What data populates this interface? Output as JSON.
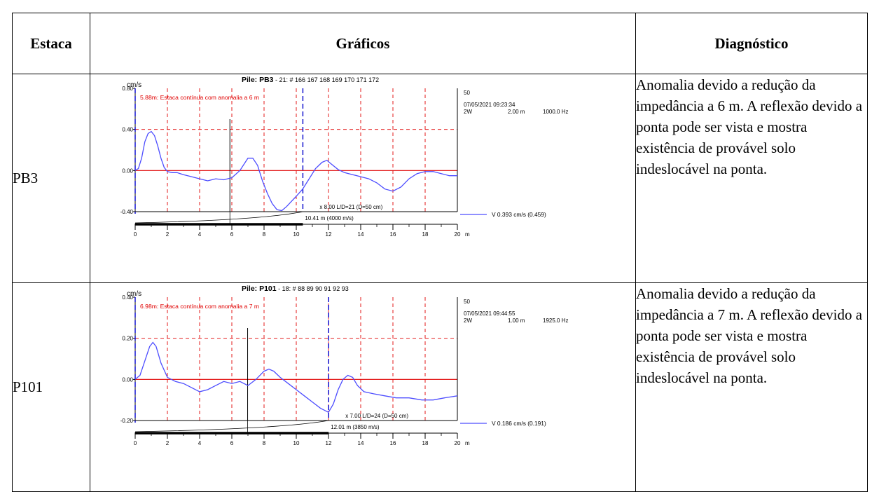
{
  "table": {
    "headers": {
      "estaca": "Estaca",
      "graficos": "Gráficos",
      "diagnostico": "Diagnóstico"
    },
    "rows": [
      {
        "estaca": "PB3",
        "diagnostico": "Anomalia devido a redução da impedância a 6 m. A reflexão devido a ponta pode ser vista e mostra existência de provável solo indeslocável na ponta."
      },
      {
        "estaca": "P101",
        "diagnostico": "Anomalia devido a redução da impedância a 7 m. A reflexão devido a ponta pode ser vista e mostra existência de provável solo indeslocável na ponta."
      }
    ]
  },
  "chart_data": [
    {
      "type": "line",
      "title_bold": "Pile: PB3",
      "title_rest": " - 21: # 166 167 168 169 170 171 172",
      "ylabel": "cm/s",
      "xlabel": "m",
      "xlim": [
        0,
        20
      ],
      "ylim": [
        -0.4,
        0.8
      ],
      "yticks": [
        "0.80",
        "0.40",
        "0.00",
        "-0.40"
      ],
      "xticks": [
        "0",
        "2",
        "4",
        "6",
        "8",
        "10",
        "12",
        "14",
        "16",
        "18",
        "20"
      ],
      "annotation": "5.88m: Estaca contínua com anomalia a 6 m",
      "anomaly_x": 5.88,
      "toe_x": 10.41,
      "info": {
        "n": "50",
        "datetime": "07/05/2021 09:23:34",
        "mode": "2W",
        "dist": "2.00 m",
        "freq": "1000.0 Hz"
      },
      "amp_label": "x 8.00 L/D=21 (D=50 cm)",
      "length_label": "10.41 m (4000 m/s)",
      "legend": "V  0.393 cm/s  (0.459)",
      "series": [
        {
          "x": [
            0,
            0.2,
            0.4,
            0.6,
            0.8,
            1.0,
            1.2,
            1.4,
            1.6,
            1.8,
            2.0,
            2.3,
            2.6,
            3.0,
            3.5,
            4.0,
            4.5,
            5.0,
            5.5,
            6.0,
            6.5,
            7.0,
            7.3,
            7.6,
            7.9,
            8.2,
            8.5,
            8.8,
            9.1,
            9.4,
            9.7,
            10.0,
            10.4,
            10.8,
            11.2,
            11.6,
            11.9,
            12.2,
            12.6,
            13.0,
            13.5,
            14.0,
            14.5,
            15.0,
            15.5,
            16.0,
            16.5,
            17.0,
            17.5,
            18.0,
            18.5,
            19.0,
            19.5,
            20.0
          ],
          "y": [
            0,
            0.02,
            0.12,
            0.28,
            0.36,
            0.38,
            0.34,
            0.24,
            0.12,
            0.03,
            -0.01,
            -0.02,
            -0.02,
            -0.04,
            -0.06,
            -0.08,
            -0.1,
            -0.08,
            -0.09,
            -0.07,
            0,
            0.12,
            0.12,
            0.05,
            -0.1,
            -0.22,
            -0.32,
            -0.38,
            -0.39,
            -0.35,
            -0.3,
            -0.25,
            -0.18,
            -0.08,
            0.02,
            0.08,
            0.1,
            0.06,
            0.01,
            -0.02,
            -0.04,
            -0.06,
            -0.08,
            -0.12,
            -0.18,
            -0.2,
            -0.16,
            -0.08,
            -0.03,
            -0.01,
            -0.01,
            -0.03,
            -0.05,
            -0.05
          ]
        }
      ]
    },
    {
      "type": "line",
      "title_bold": "Pile: P101",
      "title_rest": " - 18: # 88 89 90 91 92 93",
      "ylabel": "cm/s",
      "xlabel": "m",
      "xlim": [
        0,
        20
      ],
      "ylim": [
        -0.2,
        0.4
      ],
      "yticks": [
        "0.40",
        "0.20",
        "0.00",
        "-0.20"
      ],
      "xticks": [
        "0",
        "2",
        "4",
        "6",
        "8",
        "10",
        "12",
        "14",
        "16",
        "18",
        "20"
      ],
      "annotation": "6.98m: Estaca contínua com anomalia a 7 m",
      "anomaly_x": 6.98,
      "toe_x": 12.01,
      "info": {
        "n": "50",
        "datetime": "07/05/2021 09:44:55",
        "mode": "2W",
        "dist": "1.00 m",
        "freq": "1925.0 Hz"
      },
      "amp_label": "x 7.00 L/D=24 (D=50 cm)",
      "length_label": "12.01 m (3850 m/s)",
      "legend": "V  0.186 cm/s  (0.191)",
      "series": [
        {
          "x": [
            0,
            0.3,
            0.6,
            0.9,
            1.1,
            1.3,
            1.6,
            2.0,
            2.5,
            3.0,
            3.5,
            4.0,
            4.5,
            5.0,
            5.5,
            6.0,
            6.5,
            7.0,
            7.5,
            8.0,
            8.3,
            8.6,
            9.0,
            9.5,
            10.0,
            10.5,
            11.0,
            11.5,
            12.0,
            12.3,
            12.6,
            12.9,
            13.2,
            13.5,
            13.8,
            14.2,
            14.8,
            15.5,
            16.2,
            17.0,
            17.8,
            18.5,
            19.2,
            20.0
          ],
          "y": [
            0,
            0.02,
            0.09,
            0.16,
            0.18,
            0.16,
            0.08,
            0.01,
            -0.01,
            -0.02,
            -0.04,
            -0.06,
            -0.05,
            -0.03,
            -0.01,
            -0.02,
            -0.01,
            -0.03,
            0.0,
            0.04,
            0.05,
            0.04,
            0.01,
            -0.02,
            -0.05,
            -0.08,
            -0.11,
            -0.14,
            -0.16,
            -0.12,
            -0.05,
            0.0,
            0.02,
            0.01,
            -0.03,
            -0.06,
            -0.07,
            -0.08,
            -0.09,
            -0.09,
            -0.1,
            -0.1,
            -0.09,
            -0.08
          ]
        }
      ]
    }
  ],
  "colors": {
    "trace": "#4d4dff",
    "grid": "#e00000",
    "marker": "#0000cc",
    "annotation": "#e00000"
  }
}
